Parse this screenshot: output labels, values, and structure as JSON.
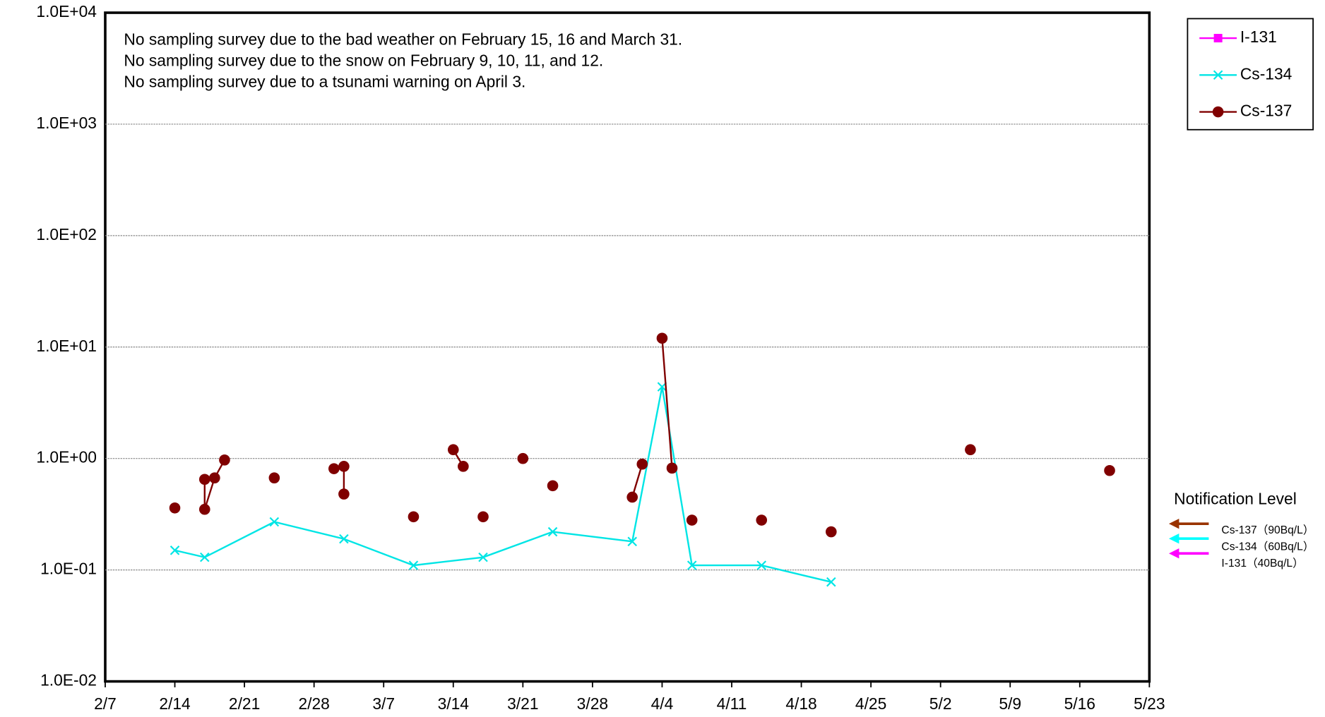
{
  "chart_data": {
    "type": "scatter",
    "log_y": true,
    "grid": true,
    "legend": "upper right",
    "annotations": [
      "No sampling survey due to the bad weather on February 15, 16 and March 31.",
      "No sampling survey due to the snow on February 9, 10, 11, and 12.",
      "No sampling survey due to a tsunami warning on April 3."
    ],
    "xlim": [
      "2/7",
      "5/23"
    ],
    "xticks": [
      "2/7",
      "2/14",
      "2/21",
      "2/28",
      "3/7",
      "3/14",
      "3/21",
      "3/28",
      "4/4",
      "4/11",
      "4/18",
      "4/25",
      "5/2",
      "5/9",
      "5/16",
      "5/23"
    ],
    "ylim": [
      0.01,
      10000
    ],
    "yticks": [
      {
        "value": 0.01,
        "label": "1.0E-02"
      },
      {
        "value": 0.1,
        "label": "1.0E-01"
      },
      {
        "value": 1,
        "label": "1.0E+00"
      },
      {
        "value": 10,
        "label": "1.0E+01"
      },
      {
        "value": 100,
        "label": "1.0E+02"
      },
      {
        "value": 1000,
        "label": "1.0E+03"
      },
      {
        "value": 10000,
        "label": "1.0E+04"
      }
    ],
    "series": [
      {
        "name": "I-131",
        "color": "#ff00ff",
        "marker": "square",
        "x": [],
        "values": []
      },
      {
        "name": "Cs-134",
        "color": "#00e5e5",
        "marker": "x",
        "x": [
          "2/14",
          "2/17",
          "2/24",
          "3/3",
          "3/10",
          "3/17",
          "3/24",
          "4/1",
          "4/4",
          "4/7",
          "4/14",
          "4/21"
        ],
        "values": [
          0.15,
          0.13,
          0.27,
          0.19,
          0.11,
          0.13,
          0.22,
          0.18,
          4.4,
          0.11,
          0.11,
          0.078
        ]
      },
      {
        "name": "Cs-137",
        "color": "#800000",
        "marker": "circle",
        "x": [
          "2/14",
          null,
          "2/17",
          "2/17",
          "2/18",
          "2/19",
          null,
          "2/24",
          null,
          "3/2",
          "3/3",
          "3/3",
          null,
          "3/10",
          null,
          "3/14",
          "3/15",
          null,
          "3/17",
          null,
          "3/21",
          null,
          "3/24",
          null,
          "4/1",
          "4/2",
          null,
          "4/4",
          "4/5",
          null,
          "4/7",
          null,
          "4/14",
          null,
          "4/21",
          null,
          "5/5",
          null,
          "5/19"
        ],
        "values": [
          0.36,
          null,
          0.65,
          0.35,
          0.67,
          0.97,
          null,
          0.67,
          null,
          0.81,
          0.85,
          0.48,
          null,
          0.3,
          null,
          1.2,
          0.85,
          null,
          0.3,
          null,
          1.0,
          null,
          0.57,
          null,
          0.45,
          0.89,
          null,
          12,
          0.82,
          null,
          0.28,
          null,
          0.28,
          null,
          0.22,
          null,
          1.2,
          null,
          0.78
        ]
      }
    ],
    "notification_level": {
      "title": "Notification Level",
      "items": [
        {
          "label": "Cs-137（90Bq/L）",
          "color": "#993300"
        },
        {
          "label": "Cs-134（60Bq/L）",
          "color": "#00ffff"
        },
        {
          "label": "I-131（40Bq/L）",
          "color": "#ff00ff"
        }
      ]
    }
  }
}
